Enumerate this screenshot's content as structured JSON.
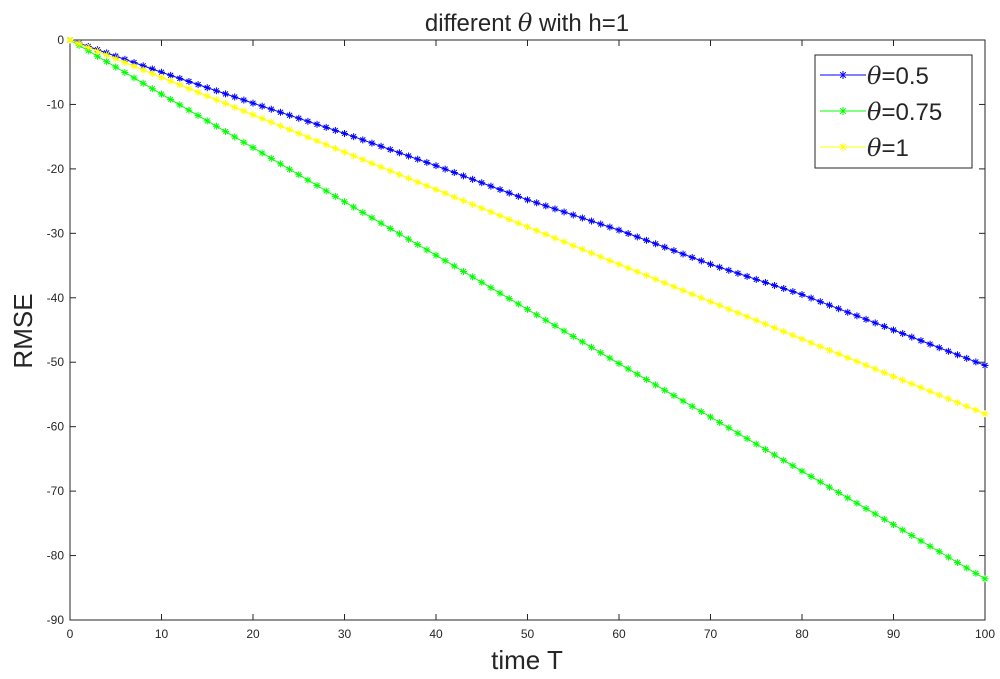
{
  "chart_data": {
    "type": "line",
    "title_prefix": "different ",
    "title_symbol": "θ",
    "title_suffix": " with h=1",
    "xlabel": "time T",
    "ylabel": "RMSE",
    "xlim": [
      0,
      100
    ],
    "ylim": [
      -90,
      0
    ],
    "xticks": [
      0,
      10,
      20,
      30,
      40,
      50,
      60,
      70,
      80,
      90,
      100
    ],
    "yticks": [
      0,
      -10,
      -20,
      -30,
      -40,
      -50,
      -60,
      -70,
      -80,
      -90
    ],
    "grid": false,
    "legend_position": "top-right",
    "marker": "asterisk",
    "series": [
      {
        "name": "θ=0.5",
        "legend_symbol": "θ",
        "legend_value": "=0.5",
        "color": "#0000ff",
        "x": [
          0,
          10,
          20,
          30,
          40,
          50,
          60,
          70,
          80,
          90,
          100
        ],
        "y": [
          0,
          -5,
          -9.8,
          -14.5,
          -19.5,
          -24.8,
          -29.5,
          -34.8,
          -39.5,
          -45,
          -50.5
        ]
      },
      {
        "name": "θ=0.75",
        "legend_symbol": "θ",
        "legend_value": "=0.75",
        "color": "#00ff00",
        "x": [
          0,
          10,
          20,
          30,
          40,
          50,
          60,
          70,
          80,
          90,
          100
        ],
        "y": [
          0,
          -8.4,
          -16.7,
          -25.1,
          -33.4,
          -41.8,
          -50.2,
          -58.5,
          -66.9,
          -75.2,
          -83.6
        ]
      },
      {
        "name": "θ=1",
        "legend_symbol": "θ",
        "legend_value": "=1",
        "color": "#ffff00",
        "x": [
          0,
          10,
          20,
          30,
          40,
          50,
          60,
          70,
          80,
          90,
          100
        ],
        "y": [
          0,
          -5.8,
          -11.6,
          -17.4,
          -23.2,
          -29,
          -34.8,
          -40.6,
          -46.4,
          -52.2,
          -58
        ]
      }
    ]
  }
}
